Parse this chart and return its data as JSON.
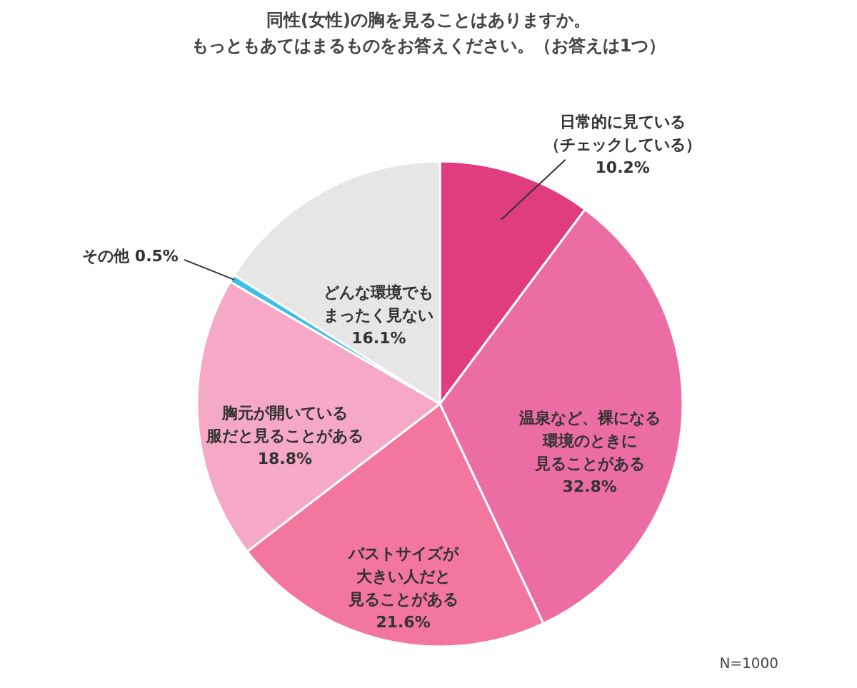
{
  "chart_data": {
    "type": "pie",
    "title": "同性(女性)の胸を見ることはありますか。もっともあてはまるものをお答えください。（お答えは1つ）",
    "categories": [
      "日常的に見ている（チェックしている）",
      "温泉など、裸になる環境のときに見ることがある",
      "バストサイズが大きい人だと見ることがある",
      "胸元が開いている服だと見ることがある",
      "その他",
      "どんな環境でもまったく見ない"
    ],
    "values": [
      10.2,
      32.8,
      21.6,
      18.8,
      0.5,
      16.1
    ],
    "value_labels": [
      "10.2%",
      "32.8%",
      "21.6%",
      "18.8%",
      "0.5%",
      "16.1%"
    ],
    "colors": [
      "#e03c80",
      "#ec6ca4",
      "#f3769f",
      "#f6a9c7",
      "#3cbfe8",
      "#e6e6e6"
    ],
    "annotations": [
      "N=1000"
    ]
  }
}
